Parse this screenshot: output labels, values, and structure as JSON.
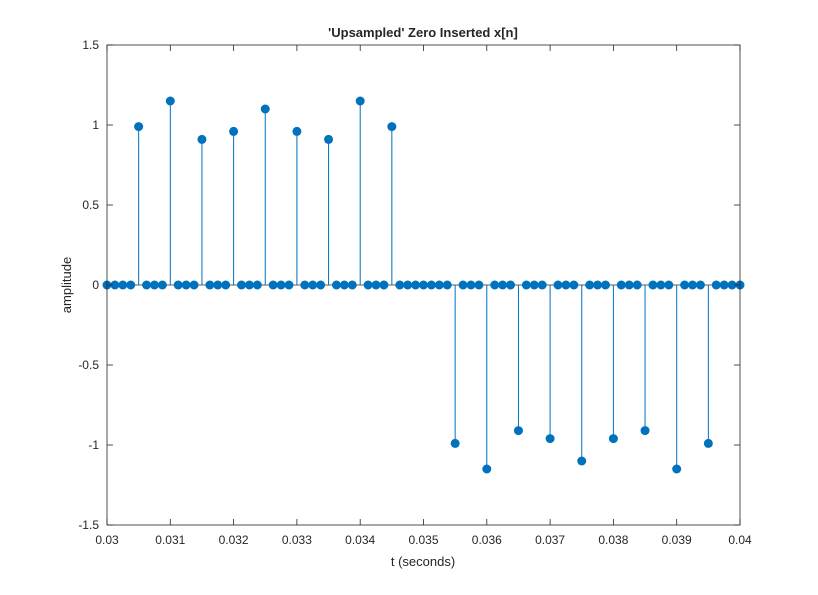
{
  "chart_data": {
    "type": "stem",
    "title": "'Upsampled' Zero Inserted x[n]",
    "xlabel": "t (seconds)",
    "ylabel": "amplitude",
    "xlim": [
      0.03,
      0.04
    ],
    "ylim": [
      -1.5,
      1.5
    ],
    "xticks": [
      0.03,
      0.031,
      0.032,
      0.033,
      0.034,
      0.035,
      0.036,
      0.037,
      0.038,
      0.039,
      0.04
    ],
    "xtick_labels": [
      "0.03",
      "0.031",
      "0.032",
      "0.033",
      "0.034",
      "0.035",
      "0.036",
      "0.037",
      "0.038",
      "0.039",
      "0.04"
    ],
    "yticks": [
      -1.5,
      -1,
      -0.5,
      0,
      0.5,
      1,
      1.5
    ],
    "ytick_labels": [
      "-1.5",
      "-1",
      "-0.5",
      "0",
      "0.5",
      "1",
      "1.5"
    ],
    "grid": false,
    "series": [
      {
        "color": "#0072BD",
        "x": [
          0.03,
          0.0305,
          0.031,
          0.0315,
          0.032,
          0.0325,
          0.033,
          0.0335,
          0.034,
          0.0345,
          0.035,
          0.0355,
          0.036,
          0.0365,
          0.037,
          0.0375,
          0.038,
          0.0385,
          0.039,
          0.0395,
          0.04
        ],
        "values": [
          0,
          0.99,
          1.15,
          0.91,
          0.96,
          1.1,
          0.96,
          0.91,
          1.15,
          0.99,
          0,
          -0.99,
          -1.15,
          -0.91,
          -0.96,
          -1.1,
          -0.96,
          -0.91,
          -1.15,
          -0.99,
          0
        ],
        "zero_insertion_factor": 4
      }
    ]
  }
}
